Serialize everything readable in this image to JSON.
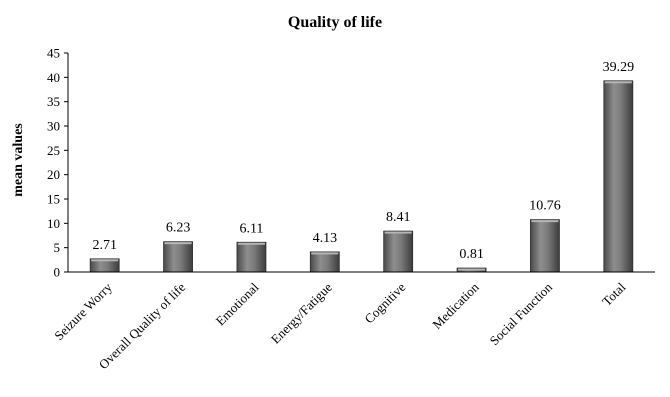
{
  "chart_data": {
    "type": "bar",
    "title": "Quality of life",
    "xlabel": "",
    "ylabel": "mean values",
    "ylim": [
      0,
      45
    ],
    "yticks": [
      0,
      5,
      10,
      15,
      20,
      25,
      30,
      35,
      40,
      45
    ],
    "grid": false,
    "legend": "none",
    "categories": [
      "Seizure Worry",
      "Overall Quality of life",
      "Emotional",
      "Energy/Fatigue",
      "Cognitive",
      "Medication",
      "Social Function",
      "Total"
    ],
    "values": [
      2.71,
      6.23,
      6.11,
      4.13,
      8.41,
      0.81,
      10.76,
      39.29
    ],
    "data_labels": [
      "2.71",
      "6.23",
      "6.11",
      "4.13",
      "8.41",
      "0.81",
      "10.76",
      "39.29"
    ],
    "colors": {
      "bar": "#7b7b7b",
      "bar_dark": "#3f3f3f",
      "bar_light": "#a8a8a8",
      "axis": "#000000"
    }
  }
}
